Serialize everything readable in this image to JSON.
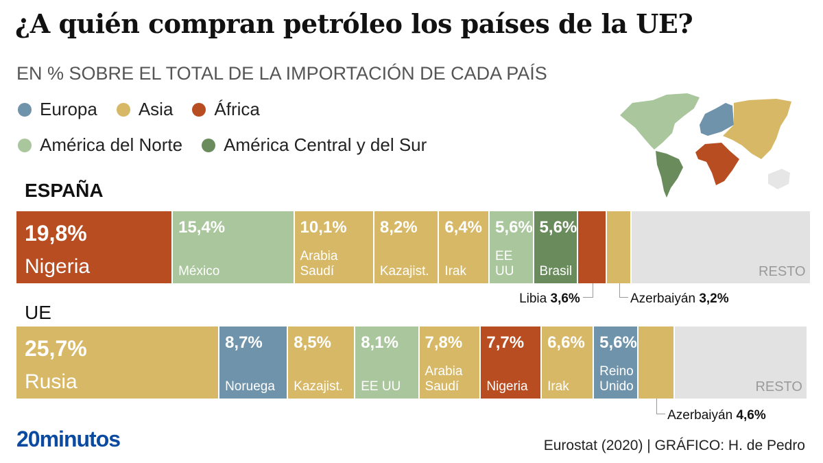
{
  "title": "¿A quién compran petróleo los países de la UE?",
  "subtitle": "EN % SOBRE EL TOTAL DE LA IMPORTACIÓN DE CADA PAÍS",
  "colors": {
    "Europa": "#6e93ab",
    "Asia": "#d7b866",
    "África": "#b84d21",
    "América del Norte": "#a9c69c",
    "América Central y del Sur": "#6a8c5c",
    "Resto": "#e2e2e2",
    "Oceanía": "#e6e6e6"
  },
  "legend": [
    {
      "label": "Europa",
      "region": "Europa"
    },
    {
      "label": "Asia",
      "region": "Asia"
    },
    {
      "label": "África",
      "region": "África"
    },
    {
      "label": "América del Norte",
      "region": "América del Norte"
    },
    {
      "label": "América Central y del Sur",
      "region": "América Central y del Sur"
    }
  ],
  "chart_data": [
    {
      "type": "bar",
      "subtype": "stacked-100-horizontal",
      "title": "ESPAÑA",
      "unit": "%",
      "xlim": [
        0,
        100
      ],
      "segments": [
        {
          "country": "Nigeria",
          "value": 19.8,
          "label": "19,8%",
          "region": "África"
        },
        {
          "country": "México",
          "value": 15.4,
          "label": "15,4%",
          "region": "América del Norte"
        },
        {
          "country": "Arabia\nSaudí",
          "value": 10.1,
          "label": "10,1%",
          "region": "Asia"
        },
        {
          "country": "Kazajist.",
          "value": 8.2,
          "label": "8,2%",
          "region": "Asia"
        },
        {
          "country": "Irak",
          "value": 6.4,
          "label": "6,4%",
          "region": "Asia"
        },
        {
          "country": "EE UU",
          "value": 5.6,
          "label": "5,6%",
          "region": "América del Norte"
        },
        {
          "country": "Brasil",
          "value": 5.6,
          "label": "5,6%",
          "region": "América Central y del Sur"
        },
        {
          "country": "Libia",
          "value": 3.6,
          "label": "3,6%",
          "region": "África",
          "callout": true
        },
        {
          "country": "Azerbaiyán",
          "value": 3.2,
          "label": "3,2%",
          "region": "Asia",
          "callout": true
        },
        {
          "country": "RESTO",
          "value": 22.5,
          "label": "",
          "region": "Resto"
        }
      ]
    },
    {
      "type": "bar",
      "subtype": "stacked-100-horizontal",
      "title": "UE",
      "unit": "%",
      "xlim": [
        0,
        100
      ],
      "segments": [
        {
          "country": "Rusia",
          "value": 25.7,
          "label": "25,7%",
          "region": "Asia"
        },
        {
          "country": "Noruega",
          "value": 8.7,
          "label": "8,7%",
          "region": "Europa"
        },
        {
          "country": "Kazajist.",
          "value": 8.5,
          "label": "8,5%",
          "region": "Asia"
        },
        {
          "country": "EE UU",
          "value": 8.1,
          "label": "8,1%",
          "region": "América del Norte"
        },
        {
          "country": "Arabia\nSaudí",
          "value": 7.8,
          "label": "7,8%",
          "region": "Asia"
        },
        {
          "country": "Nigeria",
          "value": 7.7,
          "label": "7,7%",
          "region": "África"
        },
        {
          "country": "Irak",
          "value": 6.6,
          "label": "6,6%",
          "region": "Asia"
        },
        {
          "country": "Reino\nUnido",
          "value": 5.6,
          "label": "5,6%",
          "region": "Europa"
        },
        {
          "country": "Azerbaiyán",
          "value": 4.6,
          "label": "4,6%",
          "region": "Asia",
          "callout": true
        },
        {
          "country": "RESTO",
          "value": 16.7,
          "label": "",
          "region": "Resto"
        }
      ]
    }
  ],
  "footer": {
    "logo": "20minutos",
    "source": "Eurostat (2020)  |  GRÁFICO: H. de Pedro"
  }
}
